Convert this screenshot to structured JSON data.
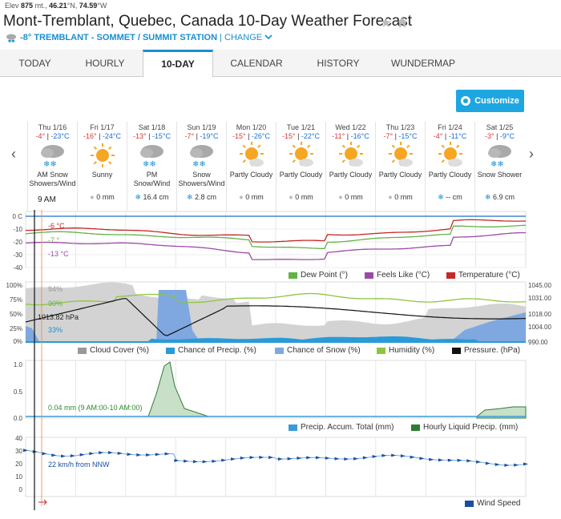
{
  "header": {
    "elev_label": "Elev",
    "elev_value": "875",
    "elev_unit": "mt.,",
    "lat": "46.21",
    "lat_unit": "°N,",
    "lon": "74.59",
    "lon_unit": "°W",
    "title": "Mont-Tremblant, Quebec, Canada 10-Day Weather Forecast",
    "current_temp": "-8°",
    "station": "TREMBLANT - SOMMET / SUMMIT STATION",
    "separator": "|",
    "change": "CHANGE"
  },
  "tabs": [
    "TODAY",
    "HOURLY",
    "10-DAY",
    "CALENDAR",
    "HISTORY",
    "WUNDERMAP"
  ],
  "active_tab": "10-DAY",
  "customize": "Customize",
  "days": [
    {
      "date": "Thu 1/16",
      "hi": "-4°",
      "lo": "-23°C",
      "icon": "snow-cloud",
      "cond": "AM Snow Showers/Wind",
      "precip": "",
      "precip_icon": "none"
    },
    {
      "date": "Fri 1/17",
      "hi": "-16°",
      "lo": "-24°C",
      "icon": "sun",
      "cond": "Sunny",
      "precip": "0 mm",
      "precip_icon": "drop"
    },
    {
      "date": "Sat 1/18",
      "hi": "-13°",
      "lo": "-15°C",
      "icon": "snow-cloud",
      "cond": "PM Snow/Wind",
      "precip": "16.4 cm",
      "precip_icon": "flake"
    },
    {
      "date": "Sun 1/19",
      "hi": "-7°",
      "lo": "-19°C",
      "icon": "snow-cloud",
      "cond": "Snow Showers/Wind",
      "precip": "2.8 cm",
      "precip_icon": "flake"
    },
    {
      "date": "Mon 1/20",
      "hi": "-15°",
      "lo": "-26°C",
      "icon": "partly",
      "cond": "Partly Cloudy",
      "precip": "0 mm",
      "precip_icon": "drop"
    },
    {
      "date": "Tue 1/21",
      "hi": "-15°",
      "lo": "-22°C",
      "icon": "partly",
      "cond": "Partly Cloudy",
      "precip": "0 mm",
      "precip_icon": "drop"
    },
    {
      "date": "Wed 1/22",
      "hi": "-11°",
      "lo": "-16°C",
      "icon": "partly",
      "cond": "Partly Cloudy",
      "precip": "0 mm",
      "precip_icon": "drop"
    },
    {
      "date": "Thu 1/23",
      "hi": "-7°",
      "lo": "-15°C",
      "icon": "partly",
      "cond": "Partly Cloudy",
      "precip": "0 mm",
      "precip_icon": "drop"
    },
    {
      "date": "Fri 1/24",
      "hi": "-4°",
      "lo": "-11°C",
      "icon": "partly",
      "cond": "Partly Cloudy",
      "precip": "-- cm",
      "precip_icon": "flake"
    },
    {
      "date": "Sat 1/25",
      "hi": "-3°",
      "lo": "-9°C",
      "icon": "snow-cloud",
      "cond": "Snow Shower",
      "precip": "6.9 cm",
      "precip_icon": "flake"
    }
  ],
  "cursor_time": "9 AM",
  "temp_chart": {
    "yticks": [
      "0 C",
      "-10",
      "-20",
      "-30",
      "-40"
    ],
    "labels": {
      "temp": "-6 °C",
      "dew": "-7 °",
      "feels": "-13 °C"
    },
    "legend": [
      "Dew Point (°)",
      "Feels Like (°C)",
      "Temperature (°C)"
    ],
    "colors": {
      "dew": "#62b245",
      "feels": "#9c4aa8",
      "temp": "#c62828"
    }
  },
  "cloud_chart": {
    "yticks": [
      "100%",
      "75%",
      "50%",
      "25%",
      "0%"
    ],
    "yticks_right": [
      "1045.00",
      "1031.00",
      "1018.00",
      "1004.00",
      "990.00"
    ],
    "labels": {
      "cloud": "94%",
      "humidity": "90%",
      "pressure": "1013.82 hPa",
      "precip": "33%"
    },
    "legend": [
      "Cloud Cover (%)",
      "Chance of Precip. (%)",
      "Chance of Snow (%)",
      "Humidity (%)",
      "Pressure. (hPa)"
    ]
  },
  "precip_chart": {
    "yticks": [
      "1.0",
      "0.5",
      "0.0"
    ],
    "label": "0.04 mm (9 AM:00-10 AM:00)",
    "legend": [
      "Precip. Accum. Total (mm)",
      "Hourly Liquid Precip. (mm)"
    ]
  },
  "wind_chart": {
    "yticks": [
      "40",
      "30",
      "20",
      "10",
      "0"
    ],
    "label": "22 km/h from NNW",
    "legend": [
      "Wind Speed"
    ]
  }
}
